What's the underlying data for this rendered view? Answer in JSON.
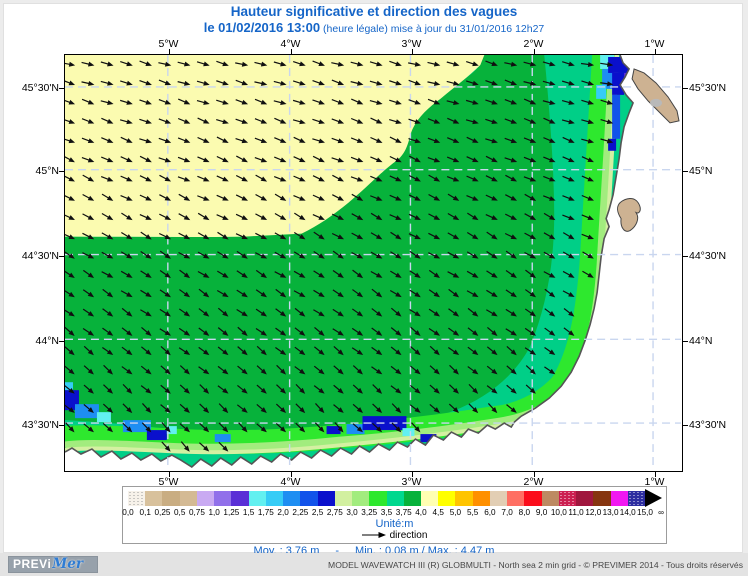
{
  "title": "Hauteur significative et direction des vagues",
  "subtitle": {
    "bold": "le 01/02/2016 13:00",
    "rest": " (heure légale) mise à jour du 31/01/2016 12h27"
  },
  "map": {
    "lon_labels": [
      "5°W",
      "4°W",
      "3°W",
      "2°W",
      "1°W"
    ],
    "lat_labels": [
      "45°30'N",
      "45°N",
      "44°30'N",
      "44°N",
      "43°30'N"
    ]
  },
  "legend": {
    "unit_label": "Unité:m",
    "direction_label": "direction",
    "last_value": "15,0",
    "end_label": "∞",
    "stops": [
      {
        "value": "0,0",
        "color": "#f7f2ea",
        "dotted": true
      },
      {
        "value": "0,1",
        "color": "#d8c19c",
        "dotted": false
      },
      {
        "value": "0,25",
        "color": "#c9ad82",
        "dotted": false
      },
      {
        "value": "0,5",
        "color": "#d4ba94",
        "dotted": false
      },
      {
        "value": "0,75",
        "color": "#c9aaf2",
        "dotted": false
      },
      {
        "value": "1,0",
        "color": "#9170ea",
        "dotted": false
      },
      {
        "value": "1,25",
        "color": "#5a2fd6",
        "dotted": false
      },
      {
        "value": "1,5",
        "color": "#62f0f0",
        "dotted": false
      },
      {
        "value": "1,75",
        "color": "#36ccf6",
        "dotted": false
      },
      {
        "value": "2,0",
        "color": "#1e8ef2",
        "dotted": false
      },
      {
        "value": "2,25",
        "color": "#1253ea",
        "dotted": false
      },
      {
        "value": "2,5",
        "color": "#0a10cc",
        "dotted": false
      },
      {
        "value": "2,75",
        "color": "#d2f0a0",
        "dotted": false
      },
      {
        "value": "3,0",
        "color": "#a2ec7e",
        "dotted": false
      },
      {
        "value": "3,25",
        "color": "#2ee82e",
        "dotted": false
      },
      {
        "value": "3,5",
        "color": "#00d88e",
        "dotted": false
      },
      {
        "value": "3,75",
        "color": "#07b23b",
        "dotted": false
      },
      {
        "value": "4,0",
        "color": "#ffffb2",
        "dotted": false
      },
      {
        "value": "4,5",
        "color": "#ffff00",
        "dotted": false
      },
      {
        "value": "5,0",
        "color": "#ffc400",
        "dotted": false
      },
      {
        "value": "5,5",
        "color": "#ff9000",
        "dotted": false
      },
      {
        "value": "6,0",
        "color": "#e2ceb4",
        "dotted": false
      },
      {
        "value": "7,0",
        "color": "#ff6f63",
        "dotted": false
      },
      {
        "value": "8,0",
        "color": "#fb0d1b",
        "dotted": false
      },
      {
        "value": "9,0",
        "color": "#bd8a62",
        "dotted": false
      },
      {
        "value": "10,0",
        "color": "#cc1f51",
        "dotted": true
      },
      {
        "value": "11,0",
        "color": "#a0173e",
        "dotted": false
      },
      {
        "value": "12,0",
        "color": "#86350f",
        "dotted": false
      },
      {
        "value": "13,0",
        "color": "#f118f1",
        "dotted": false
      },
      {
        "value": "14,0",
        "color": "#2d2da0",
        "dotted": true
      }
    ]
  },
  "stats": {
    "mean": "Moy. : 3,76 m",
    "separator": "-",
    "minmax": "Min. : 0,08 m / Max. : 4,47 m"
  },
  "footer": {
    "logo_prefix": "PREVi",
    "logo_suffix": "Mer",
    "credit": "MODEL WAVEWATCH III (R) GLOBMULTI - North sea 2 min grid - © PREVIMER 2014 - Tous droits réservés"
  },
  "colors": {
    "accent_blue": "#1565c8",
    "yellow": "#fbfbb0",
    "green_deep": "#07b23b",
    "seafoam": "#00cf87",
    "green_bright": "#2ee82e",
    "green_light": "#a2ec7e",
    "green_pale": "#d4f0a2",
    "blue_dark": "#0a10cc",
    "blue": "#1253ea",
    "azure": "#1e8ef2",
    "sky": "#36ccf6",
    "cyan": "#62f0f0",
    "purple": "#9272ea",
    "indigo": "#5a2fd6",
    "land_tan": "#cdb292",
    "land_gray": "#b9b9b9",
    "coast": "#555555",
    "grid": "#c9d6ef",
    "arrow": "#101010"
  }
}
